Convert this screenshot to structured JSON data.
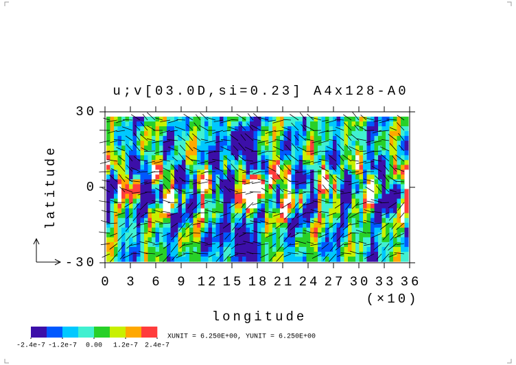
{
  "chart_data": {
    "type": "contour",
    "title": "u;v[03.0D,si=0.23] A4x128-A0",
    "xlabel": "longitude",
    "xunit_label": "(×10)",
    "ylabel": "latitude",
    "xlim": [
      0,
      36
    ],
    "xticks": [
      0,
      3,
      6,
      9,
      12,
      15,
      18,
      21,
      24,
      27,
      30,
      33,
      36
    ],
    "ylim": [
      -30,
      30
    ],
    "yticks": [
      -30,
      0,
      30
    ],
    "colorbar": {
      "lim": [
        -2.4e-07,
        2.4e-07
      ],
      "colors": [
        "#3c0fa8",
        "#0058ff",
        "#00c8ff",
        "#40f0d0",
        "#28d028",
        "#c8f000",
        "#ffa800",
        "#ff3c3c"
      ],
      "ticks": [
        {
          "value": -2.4e-07,
          "label": "-2.4e-7"
        },
        {
          "value": -1.2e-07,
          "label": "-1.2e-7"
        },
        {
          "value": 0,
          "label": "0.00"
        },
        {
          "value": 1.2e-07,
          "label": "1.2e-7"
        },
        {
          "value": 2.4e-07,
          "label": "2.4e-7"
        }
      ]
    },
    "annotation": "XUNIT = 6.250E+00, YUNIT = 6.250E+00"
  }
}
